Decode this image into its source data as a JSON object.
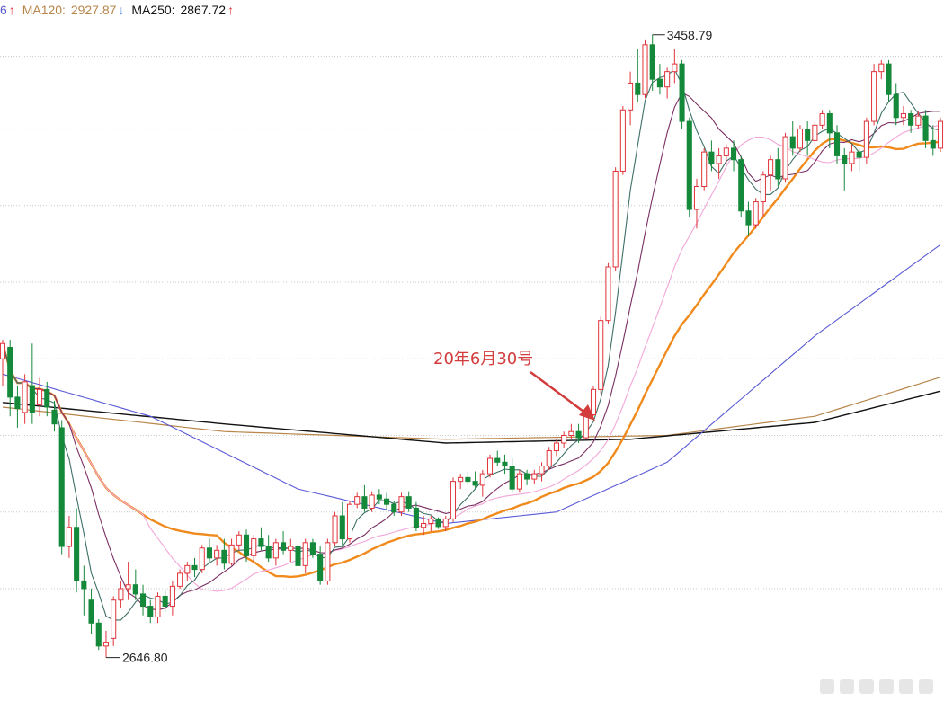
{
  "legend": {
    "ma_prev_value": "6",
    "ma_prev_arrow": "↑",
    "ma120_label": "MA120: ",
    "ma120_value": "2927.87",
    "ma120_arrow": "↓",
    "ma250_label": "MA250: ",
    "ma250_value": "2867.72",
    "ma250_arrow": "↑"
  },
  "colors": {
    "up": "#e0343a",
    "down": "#15893a",
    "grid": "#c9c9c9",
    "ma5": "#3d6f66",
    "ma10": "#7a2e63",
    "ma20": "#f2a6d8",
    "ma30": "#f08a1c",
    "ma60": "#5a5ad6",
    "ma120": "#b8864a",
    "ma250": "#111111",
    "annotation": "#d23c3c",
    "ma120_legend": "#b8864a",
    "ma250_legend": "#111111",
    "arrow_up": "#e0343a",
    "arrow_down": "#5a8fd6"
  },
  "chart_data": {
    "type": "candlestick",
    "y_range": [
      2600,
      3480
    ],
    "grid_values": [
      3430,
      3335,
      3235,
      3135,
      3035,
      2935,
      2835,
      2735
    ],
    "high_label": "3458.79",
    "low_label": "2646.80",
    "annotation": "20年6月30号",
    "candles": [
      [
        3035,
        3060,
        3000,
        3055
      ],
      [
        3050,
        3060,
        2960,
        2985
      ],
      [
        2985,
        3000,
        2945,
        2970
      ],
      [
        2965,
        3015,
        2950,
        3005
      ],
      [
        3000,
        3055,
        2950,
        2965
      ],
      [
        2975,
        3010,
        2960,
        2995
      ],
      [
        2995,
        3005,
        2960,
        2972
      ],
      [
        2968,
        2980,
        2940,
        2950
      ],
      [
        2945,
        2955,
        2780,
        2790
      ],
      [
        2790,
        2830,
        2775,
        2815
      ],
      [
        2815,
        2840,
        2730,
        2745
      ],
      [
        2745,
        2765,
        2700,
        2735
      ],
      [
        2720,
        2735,
        2675,
        2690
      ],
      [
        2690,
        2695,
        2655,
        2660
      ],
      [
        2660,
        2680,
        2645,
        2665
      ],
      [
        2670,
        2725,
        2660,
        2720
      ],
      [
        2720,
        2745,
        2710,
        2735
      ],
      [
        2735,
        2770,
        2720,
        2740
      ],
      [
        2740,
        2760,
        2720,
        2728
      ],
      [
        2728,
        2740,
        2700,
        2712
      ],
      [
        2712,
        2720,
        2690,
        2698
      ],
      [
        2698,
        2730,
        2690,
        2725
      ],
      [
        2725,
        2735,
        2705,
        2712
      ],
      [
        2712,
        2745,
        2700,
        2738
      ],
      [
        2738,
        2760,
        2735,
        2755
      ],
      [
        2755,
        2770,
        2745,
        2765
      ],
      [
        2765,
        2775,
        2750,
        2760
      ],
      [
        2760,
        2792,
        2755,
        2788
      ],
      [
        2788,
        2800,
        2770,
        2775
      ],
      [
        2775,
        2792,
        2765,
        2785
      ],
      [
        2785,
        2800,
        2760,
        2768
      ],
      [
        2768,
        2800,
        2765,
        2792
      ],
      [
        2792,
        2810,
        2785,
        2805
      ],
      [
        2805,
        2812,
        2770,
        2778
      ],
      [
        2778,
        2805,
        2770,
        2800
      ],
      [
        2800,
        2815,
        2785,
        2790
      ],
      [
        2790,
        2805,
        2770,
        2775
      ],
      [
        2775,
        2800,
        2765,
        2795
      ],
      [
        2795,
        2810,
        2780,
        2785
      ],
      [
        2785,
        2800,
        2770,
        2790
      ],
      [
        2790,
        2800,
        2760,
        2765
      ],
      [
        2765,
        2800,
        2755,
        2795
      ],
      [
        2795,
        2800,
        2775,
        2780
      ],
      [
        2780,
        2790,
        2740,
        2745
      ],
      [
        2745,
        2800,
        2740,
        2795
      ],
      [
        2795,
        2835,
        2790,
        2830
      ],
      [
        2830,
        2848,
        2790,
        2800
      ],
      [
        2800,
        2850,
        2795,
        2845
      ],
      [
        2845,
        2860,
        2840,
        2855
      ],
      [
        2855,
        2870,
        2835,
        2840
      ],
      [
        2840,
        2862,
        2835,
        2857
      ],
      [
        2857,
        2865,
        2845,
        2852
      ],
      [
        2852,
        2860,
        2838,
        2845
      ],
      [
        2845,
        2850,
        2830,
        2835
      ],
      [
        2835,
        2860,
        2830,
        2855
      ],
      [
        2855,
        2862,
        2835,
        2840
      ],
      [
        2840,
        2848,
        2810,
        2815
      ],
      [
        2815,
        2830,
        2805,
        2820
      ],
      [
        2820,
        2830,
        2810,
        2826
      ],
      [
        2826,
        2828,
        2813,
        2816
      ],
      [
        2816,
        2830,
        2810,
        2826
      ],
      [
        2826,
        2880,
        2822,
        2875
      ],
      [
        2875,
        2885,
        2865,
        2880
      ],
      [
        2880,
        2888,
        2870,
        2875
      ],
      [
        2875,
        2888,
        2865,
        2870
      ],
      [
        2870,
        2890,
        2855,
        2885
      ],
      [
        2885,
        2910,
        2880,
        2905
      ],
      [
        2905,
        2915,
        2895,
        2900
      ],
      [
        2900,
        2910,
        2885,
        2895
      ],
      [
        2895,
        2905,
        2860,
        2865
      ],
      [
        2865,
        2890,
        2860,
        2885
      ],
      [
        2885,
        2890,
        2870,
        2878
      ],
      [
        2878,
        2890,
        2872,
        2885
      ],
      [
        2885,
        2900,
        2875,
        2895
      ],
      [
        2895,
        2920,
        2890,
        2915
      ],
      [
        2915,
        2930,
        2908,
        2925
      ],
      [
        2925,
        2940,
        2918,
        2935
      ],
      [
        2935,
        2950,
        2930,
        2940
      ],
      [
        2940,
        2950,
        2925,
        2932
      ],
      [
        2932,
        2968,
        2930,
        2962
      ],
      [
        2962,
        3000,
        2960,
        2995
      ],
      [
        2995,
        3090,
        2990,
        3085
      ],
      [
        3085,
        3160,
        3080,
        3155
      ],
      [
        3155,
        3285,
        3150,
        3280
      ],
      [
        3280,
        3365,
        3275,
        3360
      ],
      [
        3360,
        3410,
        3340,
        3395
      ],
      [
        3395,
        3440,
        3370,
        3380
      ],
      [
        3380,
        3452,
        3375,
        3445
      ],
      [
        3445,
        3458,
        3385,
        3400
      ],
      [
        3400,
        3420,
        3380,
        3390
      ],
      [
        3390,
        3415,
        3375,
        3410
      ],
      [
        3410,
        3440,
        3395,
        3420
      ],
      [
        3420,
        3425,
        3335,
        3345
      ],
      [
        3345,
        3350,
        3220,
        3230
      ],
      [
        3230,
        3270,
        3205,
        3260
      ],
      [
        3260,
        3310,
        3255,
        3305
      ],
      [
        3305,
        3320,
        3280,
        3290
      ],
      [
        3290,
        3310,
        3270,
        3300
      ],
      [
        3300,
        3315,
        3290,
        3310
      ],
      [
        3310,
        3320,
        3280,
        3295
      ],
      [
        3295,
        3300,
        3220,
        3228
      ],
      [
        3228,
        3240,
        3195,
        3210
      ],
      [
        3210,
        3245,
        3205,
        3240
      ],
      [
        3240,
        3280,
        3220,
        3275
      ],
      [
        3275,
        3300,
        3255,
        3295
      ],
      [
        3295,
        3310,
        3260,
        3270
      ],
      [
        3270,
        3330,
        3265,
        3325
      ],
      [
        3325,
        3345,
        3300,
        3310
      ],
      [
        3310,
        3340,
        3305,
        3335
      ],
      [
        3335,
        3345,
        3300,
        3320
      ],
      [
        3320,
        3345,
        3315,
        3340
      ],
      [
        3340,
        3360,
        3335,
        3355
      ],
      [
        3355,
        3360,
        3310,
        3330
      ],
      [
        3330,
        3340,
        3290,
        3300
      ],
      [
        3300,
        3310,
        3255,
        3290
      ],
      [
        3290,
        3315,
        3280,
        3305
      ],
      [
        3305,
        3310,
        3280,
        3298
      ],
      [
        3298,
        3350,
        3290,
        3345
      ],
      [
        3345,
        3420,
        3340,
        3410
      ],
      [
        3410,
        3425,
        3400,
        3420
      ],
      [
        3420,
        3425,
        3370,
        3380
      ],
      [
        3380,
        3395,
        3340,
        3350
      ],
      [
        3350,
        3365,
        3340,
        3355
      ],
      [
        3355,
        3360,
        3330,
        3340
      ],
      [
        3340,
        3358,
        3335,
        3352
      ],
      [
        3352,
        3360,
        3310,
        3320
      ],
      [
        3320,
        3340,
        3300,
        3310
      ],
      [
        3310,
        3350,
        3305,
        3345
      ]
    ]
  }
}
